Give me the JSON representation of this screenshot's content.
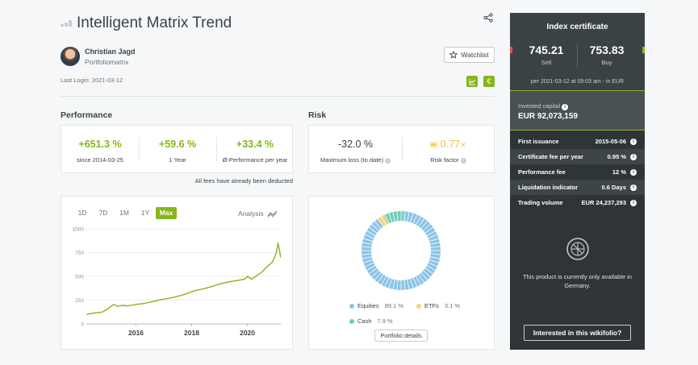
{
  "header": {
    "title": "Intelligent Matrix Trend",
    "author_name": "Christian Jagd",
    "author_sub": "Portfoliomatrix",
    "last_login": "Last Login: 2021-03-12",
    "watchlist_label": "Watchlist"
  },
  "performance": {
    "section_title": "Performance",
    "items": [
      {
        "value": "+651.3 %",
        "label": "since 2014-03-25"
      },
      {
        "value": "+59.6 %",
        "label": "1 Year"
      },
      {
        "value": "+33.4 %",
        "label": "Ø-Performance per year"
      }
    ],
    "fees_note": "All fees have already been deducted"
  },
  "risk": {
    "section_title": "Risk",
    "max_loss_value": "-32.0 %",
    "max_loss_label": "Maximum loss (to date)",
    "risk_factor_value": "0.77",
    "risk_factor_label": "Risk factor"
  },
  "chart_tabs": {
    "tabs": [
      "1D",
      "7D",
      "1M",
      "1Y",
      "Max"
    ],
    "active": "Max",
    "analysis_label": "Analysis"
  },
  "chart_data": [
    {
      "type": "line",
      "title": "",
      "xlabel": "",
      "ylabel": "",
      "ylim": [
        0,
        1000
      ],
      "yticks": [
        0,
        250,
        500,
        750,
        1000
      ],
      "xticks": [
        2016,
        2018,
        2020
      ],
      "xlim": [
        2014.22,
        2021.2
      ],
      "grid": true,
      "color": "#85b61c",
      "x": [
        2014.23,
        2014.5,
        2014.8,
        2015.0,
        2015.2,
        2015.35,
        2015.5,
        2015.7,
        2016.0,
        2016.3,
        2016.6,
        2016.9,
        2017.2,
        2017.5,
        2017.8,
        2018.0,
        2018.2,
        2018.5,
        2018.8,
        2019.0,
        2019.3,
        2019.6,
        2019.9,
        2020.0,
        2020.15,
        2020.3,
        2020.5,
        2020.7,
        2020.9,
        2021.0,
        2021.05,
        2021.1,
        2021.15,
        2021.19
      ],
      "y": [
        100,
        115,
        125,
        160,
        205,
        185,
        195,
        190,
        205,
        215,
        235,
        255,
        270,
        290,
        315,
        340,
        355,
        375,
        400,
        420,
        440,
        455,
        470,
        500,
        470,
        500,
        540,
        600,
        650,
        720,
        760,
        850,
        780,
        700
      ]
    },
    {
      "type": "pie",
      "categories": [
        "Equities",
        "ETFs",
        "Cash"
      ],
      "values": [
        89.1,
        3.1,
        7.9
      ],
      "labels": [
        "89.1 %",
        "3.1 %",
        "7.9 %"
      ],
      "colors": [
        "#8bc4e6",
        "#f3d37a",
        "#6fcfb6"
      ]
    }
  ],
  "portfolio_details_label": "Portfolio details",
  "panel": {
    "title": "Index certificate",
    "sell_value": "745.21",
    "sell_label": "Sell",
    "buy_value": "753.83",
    "buy_label": "Buy",
    "price_time": "per 2021-03-12 at 09:03 am - in EUR",
    "invested_label": "Invested capital",
    "invested_value": "EUR 92,073,159",
    "facts": [
      {
        "key": "First issuance",
        "value": "2015-05-06"
      },
      {
        "key": "Certificate fee per year",
        "value": "0.95 %"
      },
      {
        "key": "Performance fee",
        "value": "12 %"
      },
      {
        "key": "Liquidation indicator",
        "value": "0.6 Days"
      },
      {
        "key": "Trading volume",
        "value": "EUR 24,237,293"
      }
    ],
    "availability": "This product is currently only available in Germany.",
    "interest_label": "Interested in this wikifolio?"
  },
  "colors": {
    "accent": "#85b61c",
    "panel_bg": "#2f3537"
  },
  "icons": [
    "share-icon",
    "star-icon",
    "chart-export-icon",
    "euro-icon",
    "info-icon",
    "analysis-icon",
    "risk-factor-icon",
    "globe-icon"
  ]
}
